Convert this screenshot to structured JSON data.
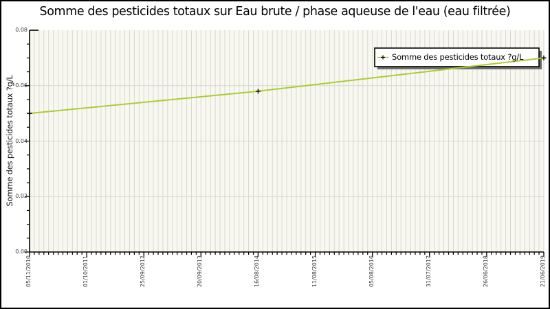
{
  "chart": {
    "title": "Somme des pesticides totaux sur Eau brute / phase aqueuse de l'eau (eau filtrée)",
    "ylabel": "Somme des pesticides totaux ?g/L",
    "legend": {
      "label": "Somme des pesticides totaux ?g/L"
    }
  },
  "chart_data": {
    "type": "line",
    "title": "Somme des pesticides totaux sur Eau brute / phase aqueuse de l'eau (eau filtrée)",
    "xlabel": "",
    "ylabel": "Somme des pesticides totaux ?g/L",
    "categories": [
      "05/11/2010",
      "01/10/2011",
      "25/09/2012",
      "20/09/2013",
      "16/08/2014",
      "11/08/2015",
      "05/08/2016",
      "31/07/2017",
      "26/06/2018",
      "21/06/2019"
    ],
    "yticks": [
      "0.00",
      "0.02",
      "0.04",
      "0.06",
      "0.08"
    ],
    "ylim": [
      0,
      0.08
    ],
    "y_minor_step": 0.005,
    "x_minor_per_major": 12,
    "grid": {
      "vertical_minor": true,
      "horizontal_major": true
    },
    "legend_position": "top-right",
    "series": [
      {
        "name": "Somme des pesticides totaux ?g/L",
        "marker": "plus",
        "points": [
          {
            "date": "05/11/2010",
            "value": 0.05
          },
          {
            "date": "16/08/2014",
            "value": 0.058
          },
          {
            "date": "21/06/2019",
            "value": 0.07
          }
        ]
      }
    ],
    "colors": {
      "line": "#aacc33",
      "plot_bg": "#f8f8f0",
      "grid": "#d8d8d2",
      "axis": "#000000",
      "marker": "#000000",
      "legend_bg": "#ffffff",
      "legend_border": "#000000",
      "legend_shadow": "#6e6e6e"
    }
  }
}
